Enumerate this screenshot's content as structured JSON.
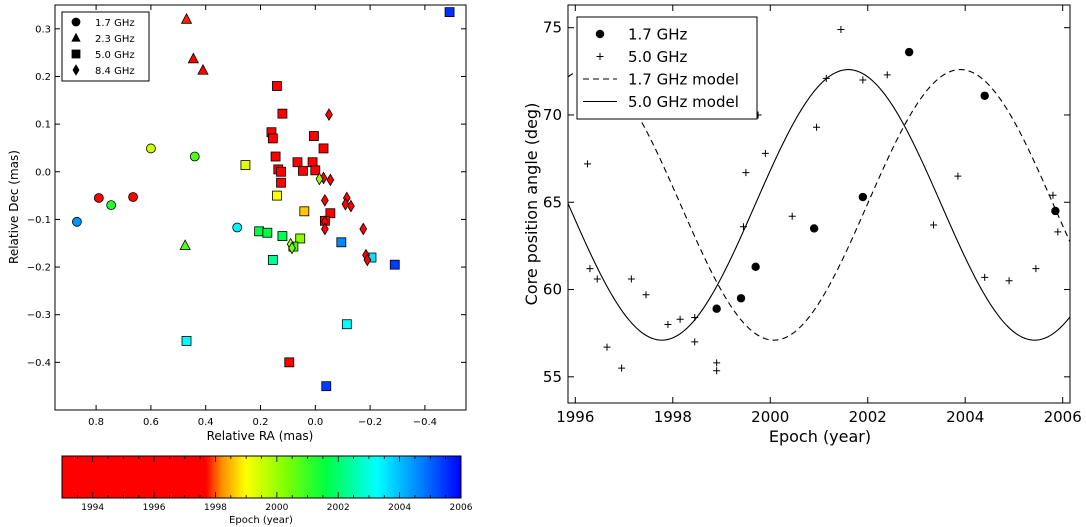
{
  "chart_data": [
    {
      "type": "scatter",
      "xlabel": "Relative RA (mas)",
      "ylabel": "Relative Dec (mas)",
      "xlim": [
        0.95,
        -0.55
      ],
      "ylim": [
        -0.5,
        0.35
      ],
      "x_ticks": [
        "0.8",
        "0.6",
        "0.4",
        "0.2",
        "0.0",
        "−0.2",
        "−0.4"
      ],
      "y_ticks": [
        "0.3",
        "0.2",
        "0.1",
        "0.0",
        "−0.1",
        "−0.2",
        "−0.3",
        "−0.4"
      ],
      "legend": {
        "placement": "top-left",
        "entries": [
          {
            "label": "1.7 GHz",
            "marker": "circle"
          },
          {
            "label": "2.3 GHz",
            "marker": "triangle"
          },
          {
            "label": "5.0 GHz",
            "marker": "square"
          },
          {
            "label": "8.4 GHz",
            "marker": "diamond"
          }
        ]
      },
      "colorbar": {
        "label": "Epoch (year)",
        "range": [
          1993,
          2006
        ],
        "ticks": [
          "1994",
          "1996",
          "1998",
          "2000",
          "2002",
          "2004",
          "2006"
        ]
      },
      "series": [
        {
          "name": "1.7 GHz",
          "marker": "circle",
          "points": [
            {
              "x": 0.87,
              "y": -0.105,
              "epoch": 2004.5
            },
            {
              "x": 0.79,
              "y": -0.055,
              "epoch": 1997.5
            },
            {
              "x": 0.745,
              "y": -0.07,
              "epoch": 2001.2
            },
            {
              "x": 0.665,
              "y": -0.053,
              "epoch": 1996.5
            },
            {
              "x": 0.6,
              "y": 0.049,
              "epoch": 1999.5
            },
            {
              "x": 0.44,
              "y": 0.032,
              "epoch": 2000.8
            },
            {
              "x": 0.285,
              "y": -0.117,
              "epoch": 2003.4
            }
          ]
        },
        {
          "name": "2.3 GHz",
          "marker": "triangle",
          "points": [
            {
              "x": 0.47,
              "y": 0.32,
              "epoch": 1997.8
            },
            {
              "x": 0.445,
              "y": 0.237,
              "epoch": 1995.0
            },
            {
              "x": 0.41,
              "y": 0.213,
              "epoch": 1994.5
            },
            {
              "x": 0.475,
              "y": -0.155,
              "epoch": 2000.8
            }
          ]
        },
        {
          "name": "5.0 GHz",
          "marker": "square",
          "points": [
            {
              "x": -0.49,
              "y": 0.335,
              "epoch": 2005.5
            },
            {
              "x": 0.14,
              "y": 0.18,
              "epoch": 1995.0
            },
            {
              "x": 0.12,
              "y": 0.122,
              "epoch": 1995.0
            },
            {
              "x": 0.16,
              "y": 0.083,
              "epoch": 1997.5
            },
            {
              "x": 0.155,
              "y": 0.07,
              "epoch": 1995.5
            },
            {
              "x": 0.145,
              "y": 0.032,
              "epoch": 1997.6
            },
            {
              "x": 0.135,
              "y": 0.005,
              "epoch": 1995.0
            },
            {
              "x": 0.125,
              "y": 0.0,
              "epoch": 1995.0
            },
            {
              "x": 0.125,
              "y": -0.023,
              "epoch": 1995.0
            },
            {
              "x": 0.255,
              "y": 0.014,
              "epoch": 1999.3
            },
            {
              "x": 0.14,
              "y": -0.05,
              "epoch": 1999.0
            },
            {
              "x": 0.065,
              "y": 0.02,
              "epoch": 1995.0
            },
            {
              "x": 0.045,
              "y": 0.002,
              "epoch": 1995.0
            },
            {
              "x": 0.005,
              "y": 0.075,
              "epoch": 1995.0
            },
            {
              "x": 0.01,
              "y": 0.02,
              "epoch": 1995.0
            },
            {
              "x": 0.0,
              "y": 0.003,
              "epoch": 1995.0
            },
            {
              "x": -0.03,
              "y": 0.049,
              "epoch": 1995.0
            },
            {
              "x": 0.04,
              "y": -0.083,
              "epoch": 1998.6
            },
            {
              "x": -0.055,
              "y": -0.087,
              "epoch": 1995.0
            },
            {
              "x": -0.035,
              "y": -0.103,
              "epoch": 1995.0
            },
            {
              "x": 0.205,
              "y": -0.125,
              "epoch": 2001.6
            },
            {
              "x": 0.175,
              "y": -0.128,
              "epoch": 2001.6
            },
            {
              "x": 0.12,
              "y": -0.135,
              "epoch": 2001.7
            },
            {
              "x": 0.155,
              "y": -0.185,
              "epoch": 2002.3
            },
            {
              "x": 0.055,
              "y": -0.14,
              "epoch": 2000.2
            },
            {
              "x": 0.08,
              "y": -0.157,
              "epoch": 2000.8
            },
            {
              "x": -0.095,
              "y": -0.148,
              "epoch": 2004.6
            },
            {
              "x": -0.205,
              "y": -0.18,
              "epoch": 2003.6
            },
            {
              "x": -0.29,
              "y": -0.195,
              "epoch": 2005.4
            },
            {
              "x": -0.115,
              "y": -0.32,
              "epoch": 2003.2
            },
            {
              "x": 0.47,
              "y": -0.355,
              "epoch": 2003.3
            },
            {
              "x": 0.095,
              "y": -0.4,
              "epoch": 1997.5
            },
            {
              "x": -0.04,
              "y": -0.45,
              "epoch": 2005.4
            }
          ]
        },
        {
          "name": "8.4 GHz",
          "marker": "diamond",
          "points": [
            {
              "x": -0.05,
              "y": 0.12,
              "epoch": 1995.0
            },
            {
              "x": -0.03,
              "y": -0.013,
              "epoch": 1995.0
            },
            {
              "x": -0.015,
              "y": -0.015,
              "epoch": 2000.0
            },
            {
              "x": -0.055,
              "y": -0.017,
              "epoch": 1995.0
            },
            {
              "x": -0.035,
              "y": -0.06,
              "epoch": 1995.0
            },
            {
              "x": -0.115,
              "y": -0.055,
              "epoch": 1995.0
            },
            {
              "x": -0.11,
              "y": -0.068,
              "epoch": 1995.0
            },
            {
              "x": -0.13,
              "y": -0.072,
              "epoch": 1995.0
            },
            {
              "x": -0.035,
              "y": -0.105,
              "epoch": 1995.0
            },
            {
              "x": -0.035,
              "y": -0.12,
              "epoch": 1995.0
            },
            {
              "x": -0.175,
              "y": -0.12,
              "epoch": 1995.0
            },
            {
              "x": -0.185,
              "y": -0.175,
              "epoch": 1997.5
            },
            {
              "x": -0.19,
              "y": -0.185,
              "epoch": 1995.0
            },
            {
              "x": 0.09,
              "y": -0.152,
              "epoch": 1999.8
            },
            {
              "x": 0.085,
              "y": -0.16,
              "epoch": 2000.4
            }
          ]
        }
      ]
    },
    {
      "type": "line",
      "xlabel": "Epoch (year)",
      "ylabel": "Core position angle (deg)",
      "xlim": [
        1995.85,
        2006.15
      ],
      "ylim": [
        53.5,
        76.3
      ],
      "x_ticks": [
        "1996",
        "1998",
        "2000",
        "2002",
        "2004",
        "2006"
      ],
      "y_ticks": [
        "55",
        "60",
        "65",
        "70",
        "75"
      ],
      "legend": {
        "placement": "top-left",
        "entries": [
          "1.7 GHz",
          "5.0 GHz",
          "1.7 GHz model",
          "5.0 GHz model"
        ]
      },
      "series": [
        {
          "name": "1.7 GHz",
          "style": "points-circle",
          "points": [
            [
              1998.9,
              58.9
            ],
            [
              1999.4,
              59.5
            ],
            [
              1999.7,
              61.3
            ],
            [
              2000.9,
              63.5
            ],
            [
              2001.9,
              65.3
            ],
            [
              2002.85,
              73.6
            ],
            [
              2004.4,
              71.1
            ],
            [
              2005.85,
              64.5
            ]
          ]
        },
        {
          "name": "5.0 GHz",
          "style": "points-plus",
          "points": [
            [
              1996.25,
              67.2
            ],
            [
              1996.3,
              61.2
            ],
            [
              1996.45,
              60.6
            ],
            [
              1996.65,
              56.7
            ],
            [
              1996.95,
              55.5
            ],
            [
              1997.15,
              60.6
            ],
            [
              1997.45,
              59.7
            ],
            [
              1997.9,
              58.0
            ],
            [
              1998.15,
              58.3
            ],
            [
              1998.45,
              57.0
            ],
            [
              1998.45,
              58.4
            ],
            [
              1998.9,
              55.8
            ],
            [
              1998.9,
              55.35
            ],
            [
              1999.45,
              63.6
            ],
            [
              1999.5,
              66.7
            ],
            [
              1999.75,
              70.0
            ],
            [
              1999.9,
              67.8
            ],
            [
              2000.45,
              64.2
            ],
            [
              2000.95,
              69.3
            ],
            [
              2001.15,
              72.1
            ],
            [
              2001.45,
              74.9
            ],
            [
              2001.9,
              72.0
            ],
            [
              2002.4,
              72.3
            ],
            [
              2003.35,
              63.7
            ],
            [
              2003.85,
              66.5
            ],
            [
              2004.4,
              60.7
            ],
            [
              2004.9,
              60.5
            ],
            [
              2005.45,
              61.2
            ],
            [
              2005.8,
              65.4
            ],
            [
              2005.9,
              63.3
            ]
          ]
        },
        {
          "name": "1.7 GHz model",
          "style": "dashed",
          "model": {
            "mean": 64.85,
            "amplitude": 7.75,
            "period": 7.65,
            "peak_epoch": 1996.25
          }
        },
        {
          "name": "5.0 GHz model",
          "style": "solid",
          "model": {
            "mean": 64.85,
            "amplitude": 7.75,
            "period": 7.65,
            "peak_epoch": 2001.6
          }
        }
      ]
    }
  ]
}
